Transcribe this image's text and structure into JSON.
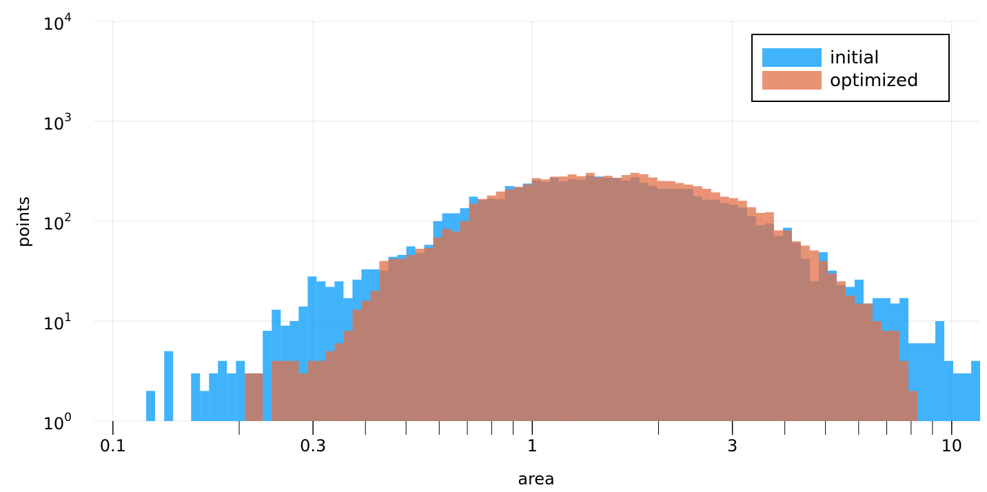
{
  "chart_data": {
    "type": "bar",
    "xlabel": "area",
    "ylabel": "points",
    "xscale": "log",
    "yscale": "log",
    "xlim": [
      0.09,
      11.6
    ],
    "ylim": [
      1,
      10000
    ],
    "grid": true,
    "legend_position": "top-right",
    "x_tick_labels": [
      {
        "value": 0.1,
        "label": "0.1"
      },
      {
        "value": 0.3,
        "label": "0.3"
      },
      {
        "value": 1,
        "label": "1"
      },
      {
        "value": 3,
        "label": "3"
      },
      {
        "value": 10,
        "label": "10"
      }
    ],
    "y_tick_labels": [
      {
        "value": 1,
        "base": "10",
        "exp": "0"
      },
      {
        "value": 10,
        "base": "10",
        "exp": "1"
      },
      {
        "value": 100,
        "base": "10",
        "exp": "2"
      },
      {
        "value": 1000,
        "base": "10",
        "exp": "3"
      },
      {
        "value": 10000,
        "base": "10",
        "exp": "4"
      }
    ],
    "minor_x_ticks": [
      0.2,
      0.4,
      0.5,
      0.6,
      0.7,
      0.8,
      0.9,
      2,
      4,
      5,
      6,
      7,
      8,
      9
    ],
    "bin_edges": [
      0.12,
      0.1261,
      0.1325,
      0.1392,
      0.1462,
      0.1536,
      0.1613,
      0.1695,
      0.178,
      0.187,
      0.1965,
      0.2064,
      0.2168,
      0.2277,
      0.2392,
      0.2513,
      0.264,
      0.2773,
      0.2913,
      0.306,
      0.3214,
      0.3377,
      0.3547,
      0.3726,
      0.3914,
      0.4111,
      0.4319,
      0.4537,
      0.4766,
      0.5006,
      0.5259,
      0.5525,
      0.5803,
      0.6096,
      0.6404,
      0.6727,
      0.7066,
      0.7423,
      0.7798,
      0.8191,
      0.8605,
      0.9039,
      0.9495,
      0.9974,
      1.0477,
      1.1006,
      1.1561,
      1.2145,
      1.2758,
      1.3401,
      1.4078,
      1.4788,
      1.5534,
      1.6318,
      1.7142,
      1.8007,
      1.8915,
      1.987,
      2.0872,
      2.1925,
      2.3032,
      2.4194,
      2.5415,
      2.6697,
      2.8044,
      2.946,
      3.0946,
      3.2508,
      3.4148,
      3.5871,
      3.7681,
      3.9582,
      4.158,
      4.3678,
      4.5882,
      4.8197,
      5.0629,
      5.3184,
      5.5868,
      5.8687,
      6.1648,
      6.4759,
      6.8027,
      7.146,
      7.5065,
      7.8853,
      8.2832,
      8.7012,
      9.1402,
      9.6014,
      10.0859,
      10.5949,
      11.1295,
      11.6911
    ],
    "series": [
      {
        "name": "initial",
        "color": "#009AFA",
        "values": [
          2,
          1,
          5,
          1,
          0,
          3,
          2,
          3,
          4,
          3,
          4,
          3,
          3,
          8,
          13,
          9,
          10,
          14,
          28,
          25,
          22,
          25,
          17,
          26,
          33,
          33,
          32,
          44,
          46,
          56,
          48,
          58,
          100,
          120,
          120,
          135,
          176,
          163,
          168,
          166,
          225,
          220,
          238,
          258,
          248,
          273,
          250,
          265,
          258,
          285,
          280,
          272,
          270,
          255,
          274,
          242,
          226,
          211,
          211,
          210,
          210,
          177,
          164,
          164,
          152,
          146,
          137,
          112,
          91,
          95,
          71,
          86,
          61,
          42,
          25,
          49,
          32,
          23,
          22,
          26,
          15,
          17,
          17,
          15,
          17,
          6,
          6,
          6,
          10,
          4,
          3,
          3,
          4,
          1
        ]
      },
      {
        "name": "optimized",
        "color": "#E26F46",
        "values": [
          0,
          0,
          0,
          0,
          0,
          0,
          0,
          0,
          0,
          0,
          0,
          3,
          3,
          1,
          4,
          4,
          4,
          3,
          4,
          4,
          5,
          6,
          8,
          13,
          16,
          20,
          40,
          42,
          42,
          46,
          53,
          54,
          69,
          84,
          79,
          100,
          150,
          167,
          181,
          198,
          208,
          220,
          233,
          270,
          262,
          279,
          280,
          294,
          282,
          305,
          276,
          285,
          272,
          290,
          305,
          295,
          274,
          253,
          252,
          241,
          232,
          224,
          211,
          194,
          176,
          170,
          160,
          138,
          121,
          123,
          81,
          81,
          63,
          57,
          51,
          40,
          30,
          25,
          18,
          15,
          15,
          10,
          8,
          8,
          4,
          2,
          1,
          0,
          0,
          0,
          0,
          0,
          0,
          0
        ]
      }
    ]
  }
}
